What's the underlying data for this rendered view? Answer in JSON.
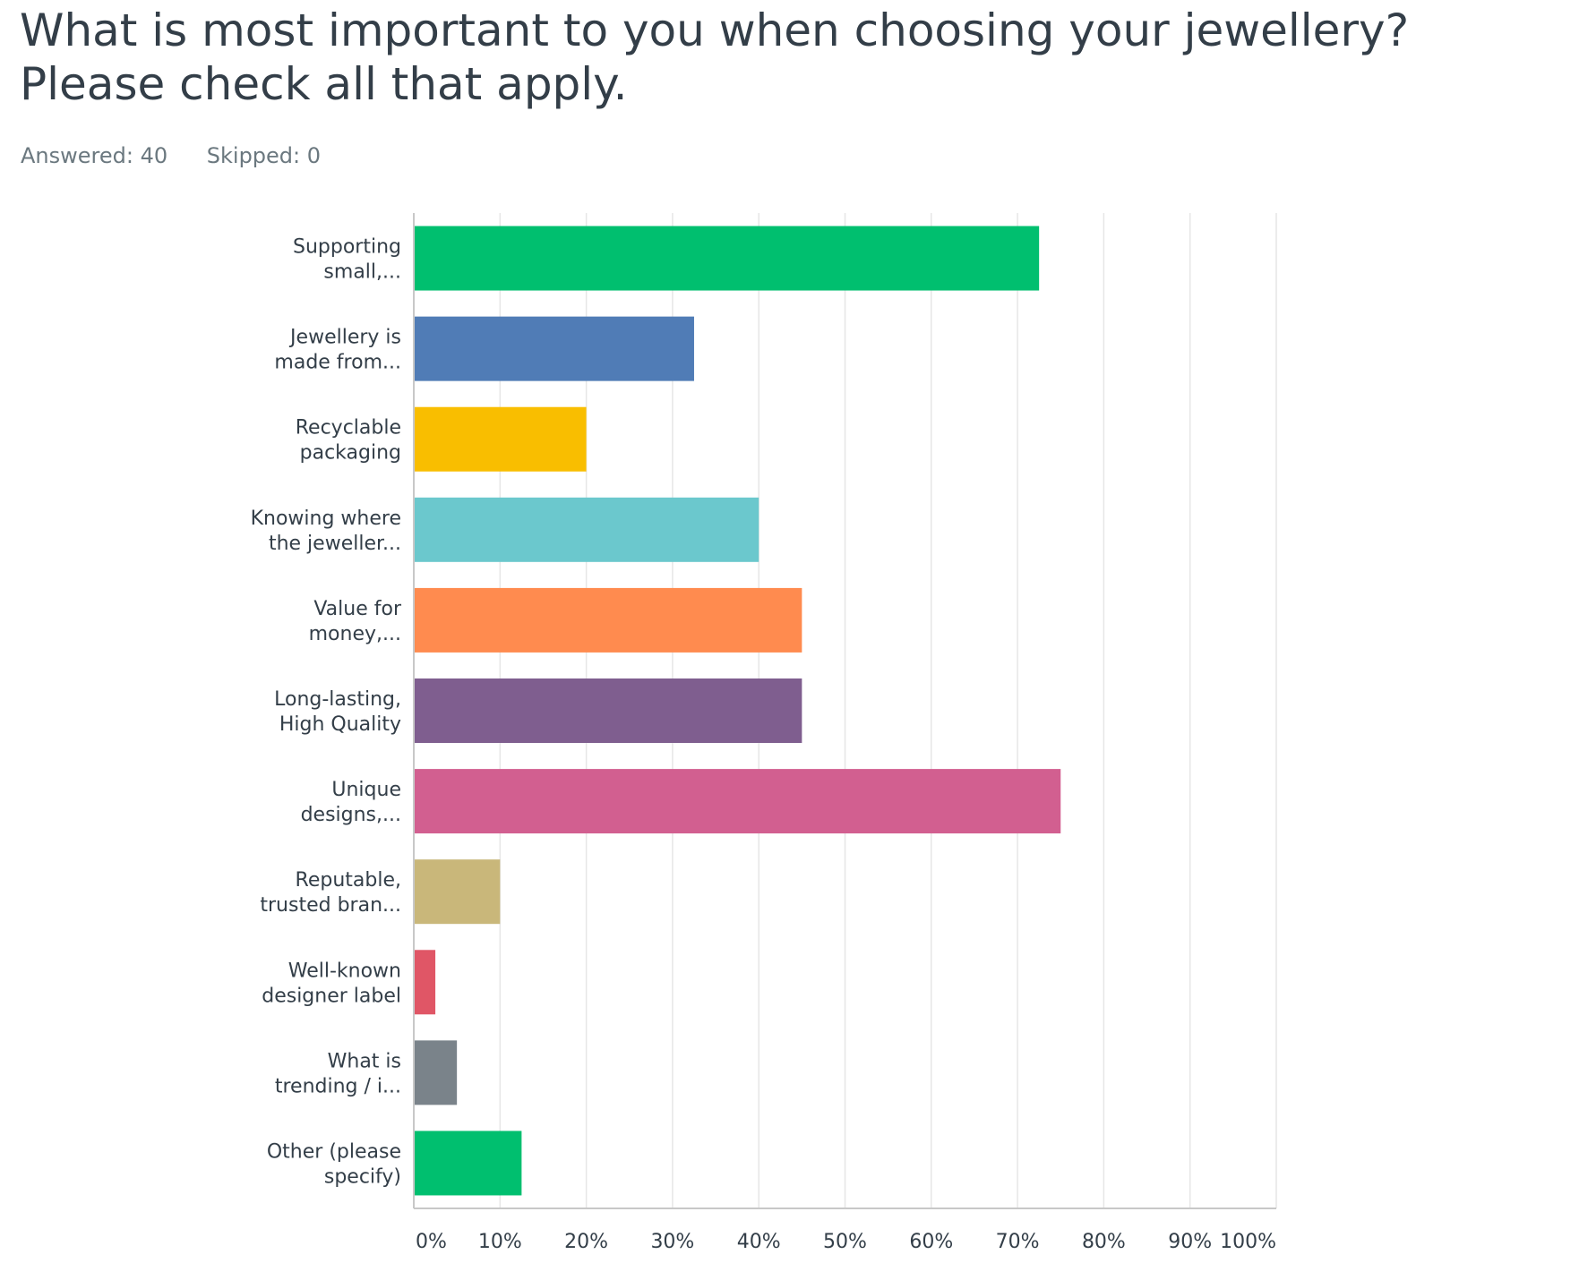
{
  "title": "What is most important to you when choosing your jewellery? Please check all that apply.",
  "stats": {
    "answered": "Answered: 40",
    "skipped": "Skipped: 0"
  },
  "chart_data": {
    "type": "bar",
    "orientation": "horizontal",
    "categories": [
      [
        "Supporting",
        "small,..."
      ],
      [
        "Jewellery is",
        "made from..."
      ],
      [
        "Recyclable",
        "packaging"
      ],
      [
        "Knowing where",
        "the jeweller..."
      ],
      [
        "Value for",
        "money,..."
      ],
      [
        "Long-lasting,",
        "High Quality"
      ],
      [
        "Unique",
        "designs,..."
      ],
      [
        "Reputable,",
        "trusted bran..."
      ],
      [
        "Well-known",
        "designer label"
      ],
      [
        "What is",
        "trending / i..."
      ],
      [
        "Other (please",
        "specify)"
      ]
    ],
    "values": [
      72.5,
      32.5,
      20,
      40,
      45,
      45,
      75,
      10,
      2.5,
      5,
      12.5
    ],
    "colors": [
      "#00bf6f",
      "#507cb6",
      "#f9be00",
      "#6bc8cd",
      "#ff8b4f",
      "#7f5e8f",
      "#d25f90",
      "#c9b77a",
      "#e05666",
      "#7a838a",
      "#00bf6f"
    ],
    "xlim": [
      0,
      100
    ],
    "ticks": [
      "0%",
      "10%",
      "20%",
      "30%",
      "40%",
      "50%",
      "60%",
      "70%",
      "80%",
      "90%",
      "100%"
    ],
    "grid": true,
    "gridColor": "#e6e6e6",
    "axisColor": "#c8c8c8"
  }
}
